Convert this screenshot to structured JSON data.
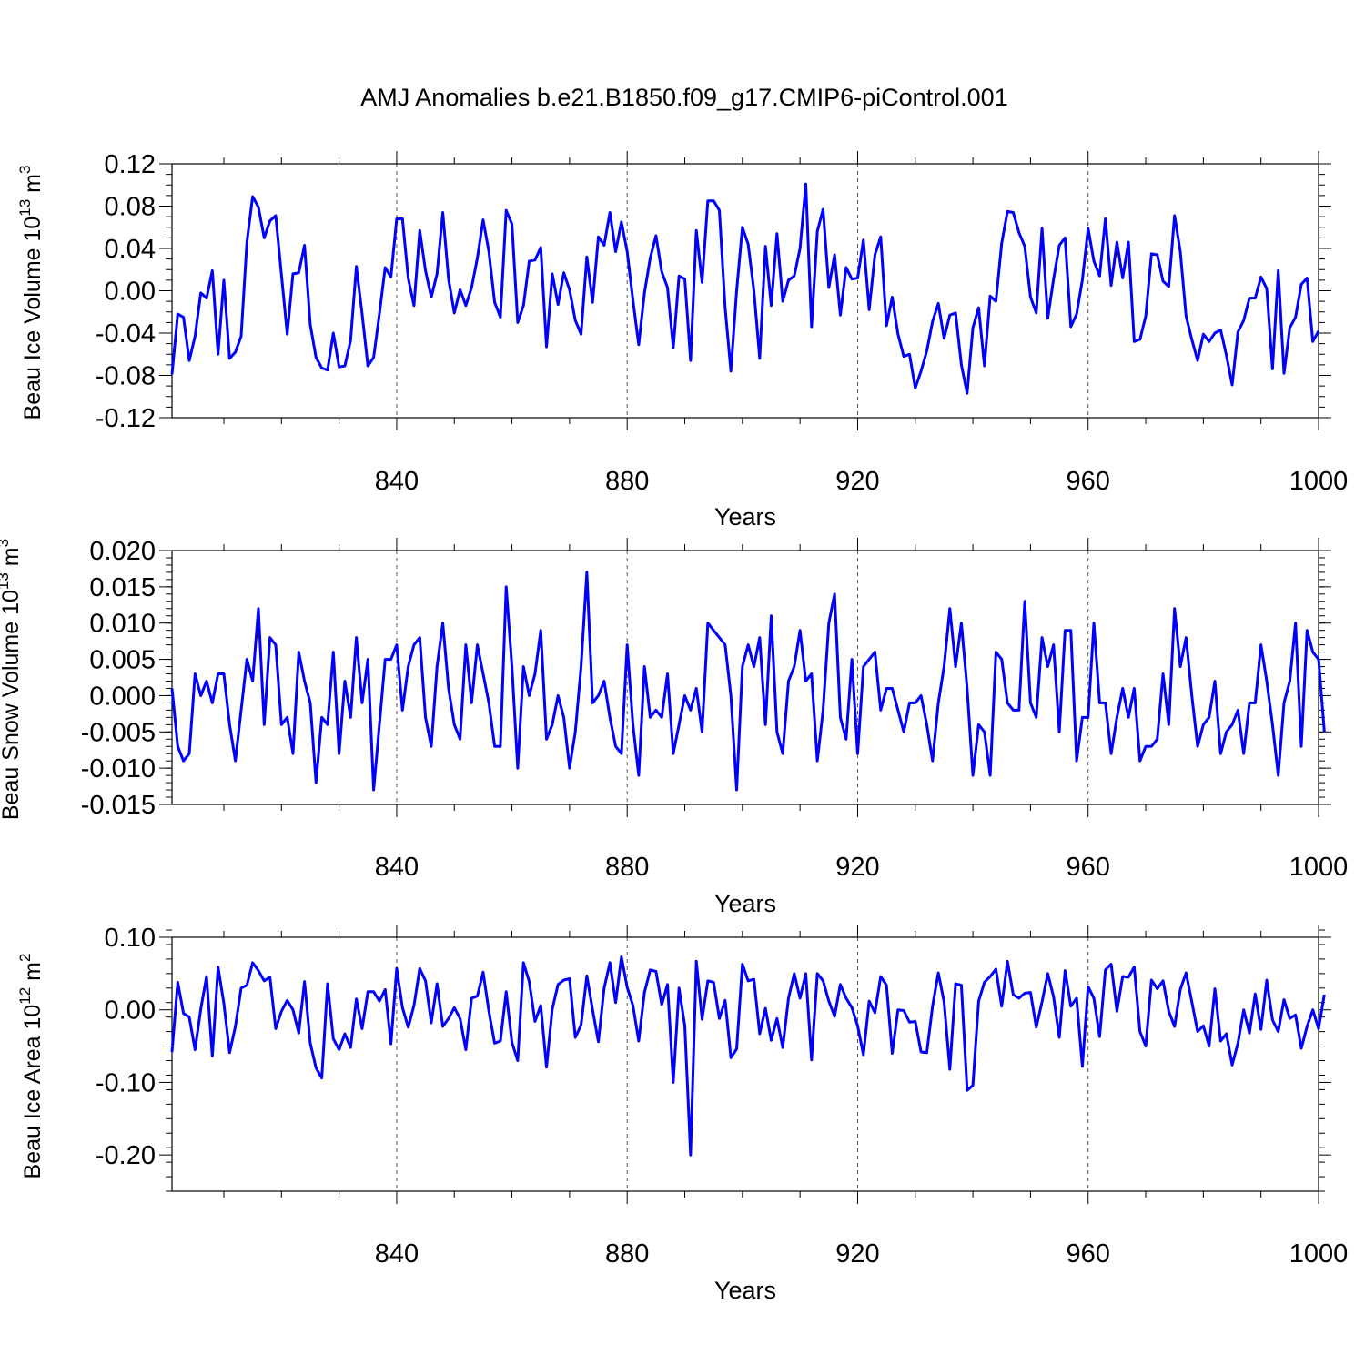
{
  "title": "AMJ Anomalies b.e21.B1850.f09_g17.CMIP6-piControl.001",
  "chart_data": [
    {
      "type": "line",
      "name": "ice-volume",
      "ylabel": "Beau Ice Volume 10",
      "ylabel_exp": "13",
      "ylabel_unit": " m",
      "ylabel_unit_exp": "3",
      "xlabel": "Years",
      "xlim": [
        801,
        1000
      ],
      "ylim": [
        -0.12,
        0.12
      ],
      "yticks": [
        -0.12,
        -0.08,
        -0.04,
        0.0,
        0.04,
        0.08,
        0.12
      ],
      "ytick_labels": [
        "-0.12",
        "-0.08",
        "-0.04",
        "0.00",
        "0.04",
        "0.08",
        "0.12"
      ],
      "yminor": 0.01,
      "xticks": [
        840,
        880,
        920,
        960,
        1000
      ],
      "xtick_labels": [
        "840",
        "880",
        "920",
        "960",
        "1000"
      ],
      "color": "#0000ff",
      "x_start": 801,
      "values": [
        -0.079,
        -0.022,
        -0.025,
        -0.066,
        -0.043,
        -0.002,
        -0.007,
        0.019,
        -0.06,
        0.01,
        -0.064,
        -0.058,
        -0.043,
        0.046,
        0.089,
        0.079,
        0.05,
        0.066,
        0.071,
        0.015,
        -0.041,
        0.016,
        0.017,
        0.043,
        -0.032,
        -0.063,
        -0.073,
        -0.075,
        -0.04,
        -0.072,
        -0.071,
        -0.047,
        0.023,
        -0.022,
        -0.071,
        -0.063,
        -0.022,
        0.022,
        0.013,
        0.068,
        0.068,
        0.012,
        -0.014,
        0.057,
        0.019,
        -0.006,
        0.016,
        0.074,
        0.011,
        -0.021,
        0.001,
        -0.014,
        0.003,
        0.031,
        0.067,
        0.037,
        -0.011,
        -0.025,
        0.076,
        0.063,
        -0.03,
        -0.014,
        0.028,
        0.029,
        0.041,
        -0.053,
        0.016,
        -0.013,
        0.017,
        0.001,
        -0.028,
        -0.041,
        0.032,
        -0.011,
        0.051,
        0.043,
        0.074,
        0.037,
        0.065,
        0.037,
        -0.009,
        -0.051,
        -0.002,
        0.031,
        0.052,
        0.018,
        0.003,
        -0.054,
        0.014,
        0.011,
        -0.066,
        0.057,
        0.008,
        0.085,
        0.085,
        0.076,
        -0.016,
        -0.076,
        0.0,
        0.06,
        0.044,
        0.0,
        -0.064,
        0.042,
        -0.014,
        0.054,
        -0.01,
        0.01,
        0.014,
        0.04,
        0.101,
        -0.034,
        0.056,
        0.077,
        0.003,
        0.034,
        -0.023,
        0.022,
        0.011,
        0.012,
        0.048,
        -0.018,
        0.034,
        0.051,
        -0.033,
        -0.006,
        -0.041,
        -0.062,
        -0.06,
        -0.092,
        -0.076,
        -0.057,
        -0.029,
        -0.012,
        -0.045,
        -0.023,
        -0.021,
        -0.07,
        -0.097,
        -0.035,
        -0.016,
        -0.071,
        -0.005,
        -0.01,
        0.045,
        0.075,
        0.074,
        0.055,
        0.042,
        -0.006,
        -0.021,
        0.059,
        -0.026,
        0.011,
        0.043,
        0.05,
        -0.034,
        -0.022,
        0.01,
        0.059,
        0.028,
        0.014,
        0.068,
        0.005,
        0.046,
        0.012,
        0.046,
        -0.048,
        -0.046,
        -0.024,
        0.035,
        0.034,
        0.009,
        0.004,
        0.071,
        0.037,
        -0.024,
        -0.046,
        -0.066,
        -0.041,
        -0.048,
        -0.04,
        -0.037,
        -0.061,
        -0.089,
        -0.039,
        -0.028,
        -0.007,
        -0.007,
        0.013,
        0.002,
        -0.074,
        0.019,
        -0.078,
        -0.035,
        -0.025,
        0.006,
        0.012,
        -0.048,
        -0.038
      ]
    },
    {
      "type": "line",
      "name": "snow-volume",
      "ylabel": "Beau Snow Volume 10",
      "ylabel_exp": "13",
      "ylabel_unit": " m",
      "ylabel_unit_exp": "3",
      "xlabel": "Years",
      "xlim": [
        801,
        1000
      ],
      "ylim": [
        -0.015,
        0.02
      ],
      "yticks": [
        -0.015,
        -0.01,
        -0.005,
        0.0,
        0.005,
        0.01,
        0.015,
        0.02
      ],
      "ytick_labels": [
        "-0.015",
        "-0.010",
        "-0.005",
        "0.000",
        "0.005",
        "0.010",
        "0.015",
        "0.020"
      ],
      "yminor": 0.001,
      "xticks": [
        840,
        880,
        920,
        960,
        1000
      ],
      "xtick_labels": [
        "840",
        "880",
        "920",
        "960",
        "1000"
      ],
      "color": "#0000ff",
      "x_start": 801,
      "values": [
        0.001,
        -0.007,
        -0.009,
        -0.008,
        0.003,
        0.0,
        0.002,
        -0.001,
        0.003,
        0.003,
        -0.004,
        -0.009,
        -0.002,
        0.005,
        0.002,
        0.012,
        -0.004,
        0.008,
        0.007,
        -0.004,
        -0.003,
        -0.008,
        0.006,
        0.002,
        -0.001,
        -0.012,
        -0.003,
        -0.004,
        0.006,
        -0.008,
        0.002,
        -0.003,
        0.008,
        -0.001,
        0.005,
        -0.013,
        -0.004,
        0.005,
        0.005,
        0.007,
        -0.002,
        0.004,
        0.007,
        0.008,
        -0.003,
        -0.007,
        0.004,
        0.01,
        0.001,
        -0.004,
        -0.006,
        0.007,
        -0.001,
        0.007,
        0.003,
        -0.001,
        -0.007,
        -0.007,
        0.015,
        0.004,
        -0.01,
        0.004,
        0.0,
        0.003,
        0.009,
        -0.006,
        -0.004,
        0.0,
        -0.003,
        -0.01,
        -0.005,
        0.004,
        0.017,
        -0.001,
        0.0,
        0.002,
        -0.003,
        -0.007,
        -0.008,
        0.007,
        -0.004,
        -0.011,
        0.004,
        -0.003,
        -0.002,
        -0.003,
        0.003,
        -0.008,
        -0.004,
        0.0,
        -0.002,
        0.001,
        -0.005,
        0.01,
        0.009,
        0.008,
        0.007,
        0.0,
        -0.013,
        0.004,
        0.007,
        0.004,
        0.008,
        -0.004,
        0.011,
        -0.005,
        -0.008,
        0.002,
        0.004,
        0.009,
        0.002,
        0.003,
        -0.009,
        -0.002,
        0.01,
        0.014,
        -0.003,
        -0.006,
        0.005,
        -0.008,
        0.004,
        0.005,
        0.006,
        -0.002,
        0.001,
        0.001,
        -0.002,
        -0.005,
        -0.001,
        -0.001,
        0.0,
        -0.004,
        -0.009,
        -0.001,
        0.004,
        0.012,
        0.004,
        0.01,
        0.001,
        -0.011,
        -0.004,
        -0.005,
        -0.011,
        0.006,
        0.005,
        -0.001,
        -0.002,
        -0.002,
        0.013,
        -0.001,
        -0.003,
        0.008,
        0.004,
        0.007,
        -0.005,
        0.009,
        0.009,
        -0.009,
        -0.003,
        -0.003,
        0.01,
        -0.001,
        -0.001,
        -0.008,
        -0.003,
        0.001,
        -0.003,
        0.001,
        -0.009,
        -0.007,
        -0.007,
        -0.006,
        0.003,
        -0.004,
        0.012,
        0.004,
        0.008,
        0.0,
        -0.007,
        -0.004,
        -0.003,
        0.002,
        -0.008,
        -0.005,
        -0.004,
        -0.002,
        -0.008,
        -0.001,
        -0.001,
        0.007,
        0.002,
        -0.004,
        -0.011,
        -0.001,
        0.002,
        0.01,
        -0.007,
        0.009,
        0.006,
        0.005,
        -0.005
      ]
    },
    {
      "type": "line",
      "name": "ice-area",
      "ylabel": "Beau Ice Area 10",
      "ylabel_exp": "12",
      "ylabel_unit": " m",
      "ylabel_unit_exp": "2",
      "xlabel": "Years",
      "xlim": [
        801,
        1000
      ],
      "ylim": [
        -0.25,
        0.1
      ],
      "yticks": [
        -0.2,
        -0.1,
        0.0,
        0.1
      ],
      "ytick_labels": [
        "-0.20",
        "-0.10",
        "0.00",
        "0.10"
      ],
      "yminor": 0.02,
      "xticks": [
        840,
        880,
        920,
        960,
        1000
      ],
      "xtick_labels": [
        "840",
        "880",
        "920",
        "960",
        "1000"
      ],
      "color": "#0000ff",
      "x_start": 801,
      "values": [
        -0.058,
        0.038,
        -0.005,
        -0.01,
        -0.055,
        0.001,
        0.046,
        -0.064,
        0.059,
        0.009,
        -0.059,
        -0.023,
        0.03,
        0.034,
        0.065,
        0.054,
        0.04,
        0.045,
        -0.026,
        -0.002,
        0.013,
        0.0,
        -0.032,
        0.039,
        -0.046,
        -0.08,
        -0.094,
        0.036,
        -0.04,
        -0.055,
        -0.033,
        -0.052,
        0.015,
        -0.026,
        0.025,
        0.025,
        0.012,
        0.028,
        -0.047,
        0.057,
        0.003,
        -0.024,
        0.006,
        0.057,
        0.04,
        -0.018,
        0.036,
        -0.023,
        -0.012,
        0.003,
        -0.012,
        -0.055,
        0.016,
        0.019,
        0.052,
        -0.002,
        -0.046,
        -0.043,
        0.025,
        -0.045,
        -0.07,
        0.065,
        0.039,
        -0.016,
        0.006,
        -0.079,
        0.001,
        0.035,
        0.041,
        0.043,
        -0.038,
        -0.021,
        0.047,
        0.0,
        -0.044,
        0.03,
        0.065,
        0.01,
        0.073,
        0.031,
        0.006,
        -0.043,
        0.024,
        0.055,
        0.053,
        0.007,
        0.035,
        -0.1,
        0.03,
        -0.022,
        -0.2,
        0.067,
        -0.013,
        0.04,
        0.038,
        -0.012,
        0.013,
        -0.066,
        -0.054,
        0.063,
        0.04,
        0.042,
        -0.033,
        0.002,
        -0.042,
        -0.012,
        -0.052,
        0.016,
        0.05,
        0.016,
        0.05,
        -0.069,
        0.05,
        0.04,
        0.012,
        -0.009,
        0.035,
        0.016,
        0.003,
        -0.022,
        -0.062,
        0.012,
        -0.004,
        0.046,
        0.034,
        -0.06,
        0.0,
        -0.001,
        -0.017,
        -0.016,
        -0.058,
        -0.059,
        0.005,
        0.051,
        0.011,
        -0.082,
        0.036,
        0.034,
        -0.111,
        -0.104,
        0.012,
        0.038,
        0.046,
        0.056,
        0.005,
        0.067,
        0.021,
        0.016,
        0.023,
        0.024,
        -0.024,
        0.011,
        0.05,
        0.018,
        -0.038,
        0.054,
        0.005,
        0.016,
        -0.078,
        0.032,
        0.016,
        -0.037,
        0.055,
        0.063,
        -0.002,
        0.046,
        0.045,
        0.059,
        -0.03,
        -0.05,
        0.041,
        0.029,
        0.04,
        -0.002,
        -0.023,
        0.028,
        0.051,
        0.011,
        -0.03,
        -0.022,
        -0.05,
        0.029,
        -0.043,
        -0.033,
        -0.076,
        -0.046,
        0.0,
        -0.032,
        0.022,
        -0.027,
        0.041,
        -0.014,
        -0.03,
        0.014,
        -0.012,
        -0.007,
        -0.053,
        -0.023,
        0.0,
        -0.026,
        0.021
      ]
    }
  ]
}
